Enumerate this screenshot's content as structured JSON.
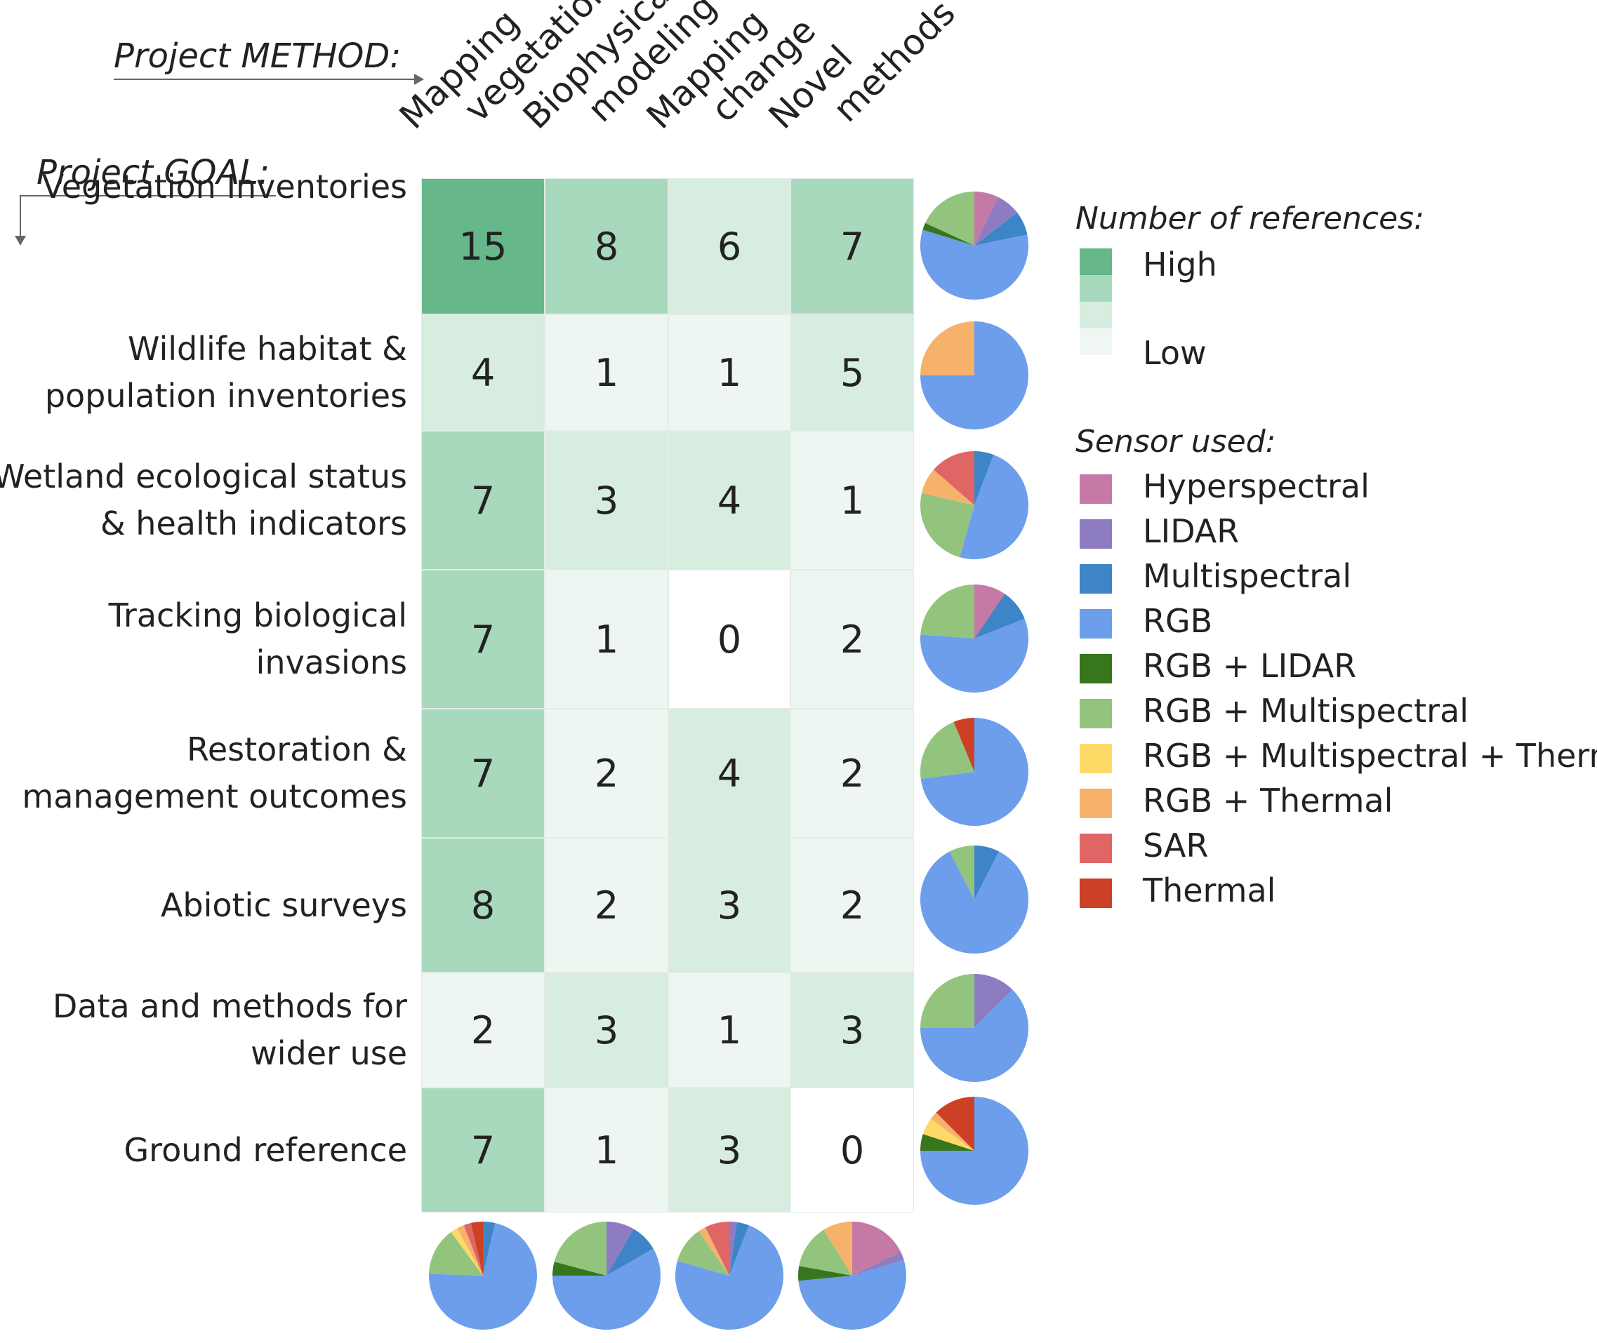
{
  "method_axis_title": "Project METHOD:",
  "goal_axis_title": "Project GOAL:",
  "chart_data": {
    "type": "heatmap",
    "title": "",
    "columns": [
      {
        "line1": "Mapping",
        "line2": "vegetation"
      },
      {
        "line1": "Biophysical",
        "line2": "modeling"
      },
      {
        "line1": "Mapping",
        "line2": "change"
      },
      {
        "line1": "Novel",
        "line2": "methods"
      }
    ],
    "rows": [
      {
        "line1": "Vegetation Inventories",
        "line2": ""
      },
      {
        "line1": "Wildlife habitat &",
        "line2": "population inventories"
      },
      {
        "line1": "Wetland ecological status",
        "line2": "& health indicators"
      },
      {
        "line1": "Tracking biological",
        "line2": "invasions"
      },
      {
        "line1": "Restoration &",
        "line2": "management outcomes"
      },
      {
        "line1": "Abiotic surveys",
        "line2": ""
      },
      {
        "line1": "Data and methods for",
        "line2": "wider use"
      },
      {
        "line1": "Ground reference",
        "line2": ""
      }
    ],
    "values": [
      [
        15,
        8,
        6,
        7
      ],
      [
        4,
        1,
        1,
        5
      ],
      [
        7,
        3,
        4,
        1
      ],
      [
        7,
        1,
        0,
        2
      ],
      [
        7,
        2,
        4,
        2
      ],
      [
        8,
        2,
        3,
        2
      ],
      [
        2,
        3,
        1,
        3
      ],
      [
        7,
        1,
        3,
        0
      ]
    ],
    "color_scale": [
      "#ffffff",
      "#eef6f1",
      "#d6ede0",
      "#a9d9bd",
      "#66b88b"
    ],
    "row_pies": [
      [
        {
          "sensor": "Hyperspectral",
          "value": 1
        },
        {
          "sensor": "LIDAR",
          "value": 1
        },
        {
          "sensor": "Multispectral",
          "value": 1
        },
        {
          "sensor": "RGB",
          "value": 8
        },
        {
          "sensor": "RGB + LIDAR",
          "value": 0.3
        },
        {
          "sensor": "RGB + Multispectral",
          "value": 2.5
        }
      ],
      [
        {
          "sensor": "RGB",
          "value": 3
        },
        {
          "sensor": "RGB + Thermal",
          "value": 1
        }
      ],
      [
        {
          "sensor": "Multispectral",
          "value": 0.6
        },
        {
          "sensor": "RGB",
          "value": 5
        },
        {
          "sensor": "RGB + Multispectral",
          "value": 2.5
        },
        {
          "sensor": "RGB + Thermal",
          "value": 0.8
        },
        {
          "sensor": "SAR",
          "value": 1.4
        }
      ],
      [
        {
          "sensor": "Hyperspectral",
          "value": 1
        },
        {
          "sensor": "Multispectral",
          "value": 1
        },
        {
          "sensor": "RGB",
          "value": 6
        },
        {
          "sensor": "RGB + Multispectral",
          "value": 2.5
        }
      ],
      [
        {
          "sensor": "RGB",
          "value": 7
        },
        {
          "sensor": "RGB + Multispectral",
          "value": 2
        },
        {
          "sensor": "Thermal",
          "value": 0.6
        }
      ],
      [
        {
          "sensor": "Multispectral",
          "value": 0.8
        },
        {
          "sensor": "RGB",
          "value": 9
        },
        {
          "sensor": "RGB + Multispectral",
          "value": 0.8
        }
      ],
      [
        {
          "sensor": "LIDAR",
          "value": 1
        },
        {
          "sensor": "RGB",
          "value": 5
        },
        {
          "sensor": "RGB + Multispectral",
          "value": 2
        }
      ],
      [
        {
          "sensor": "RGB",
          "value": 9
        },
        {
          "sensor": "RGB + LIDAR",
          "value": 0.6
        },
        {
          "sensor": "RGB + Multispectral + Thermal",
          "value": 0.6
        },
        {
          "sensor": "RGB + Thermal",
          "value": 0.3
        },
        {
          "sensor": "Thermal",
          "value": 1.5
        }
      ]
    ],
    "column_pies": [
      [
        {
          "sensor": "Multispectral",
          "value": 0.5
        },
        {
          "sensor": "RGB",
          "value": 10
        },
        {
          "sensor": "RGB + Multispectral",
          "value": 2
        },
        {
          "sensor": "RGB + Multispectral + Thermal",
          "value": 0.3
        },
        {
          "sensor": "RGB + Thermal",
          "value": 0.3
        },
        {
          "sensor": "SAR",
          "value": 0.3
        },
        {
          "sensor": "Thermal",
          "value": 0.5
        }
      ],
      [
        {
          "sensor": "LIDAR",
          "value": 1
        },
        {
          "sensor": "Multispectral",
          "value": 1
        },
        {
          "sensor": "RGB",
          "value": 7
        },
        {
          "sensor": "RGB + LIDAR",
          "value": 0.5
        },
        {
          "sensor": "RGB + Multispectral",
          "value": 2.5
        }
      ],
      [
        {
          "sensor": "LIDAR",
          "value": 0.3
        },
        {
          "sensor": "Multispectral",
          "value": 0.5
        },
        {
          "sensor": "RGB",
          "value": 10
        },
        {
          "sensor": "RGB + Multispectral",
          "value": 1.5
        },
        {
          "sensor": "RGB + Thermal",
          "value": 0.3
        },
        {
          "sensor": "SAR",
          "value": 1
        }
      ],
      [
        {
          "sensor": "Hyperspectral",
          "value": 2
        },
        {
          "sensor": "LIDAR",
          "value": 0.3
        },
        {
          "sensor": "RGB",
          "value": 6
        },
        {
          "sensor": "RGB + LIDAR",
          "value": 0.5
        },
        {
          "sensor": "RGB + Multispectral",
          "value": 1.5
        },
        {
          "sensor": "RGB + Thermal",
          "value": 1
        }
      ]
    ]
  },
  "legend": {
    "count_title": "Number of references:",
    "high_label": "High",
    "low_label": "Low",
    "sensor_title": "Sensor used:",
    "sensors": [
      {
        "label": "Hyperspectral",
        "color": "#c47aa4"
      },
      {
        "label": "LIDAR",
        "color": "#8e7cc3"
      },
      {
        "label": "Multispectral",
        "color": "#3d85c6"
      },
      {
        "label": "RGB",
        "color": "#6d9eeb"
      },
      {
        "label": "RGB + LIDAR",
        "color": "#38761d"
      },
      {
        "label": "RGB + Multispectral",
        "color": "#93c47d"
      },
      {
        "label": "RGB + Multispectral + Thermal",
        "color": "#ffd966"
      },
      {
        "label": "RGB + Thermal",
        "color": "#f6b26b"
      },
      {
        "label": "SAR",
        "color": "#e06666"
      },
      {
        "label": "Thermal",
        "color": "#cc4125"
      }
    ]
  }
}
